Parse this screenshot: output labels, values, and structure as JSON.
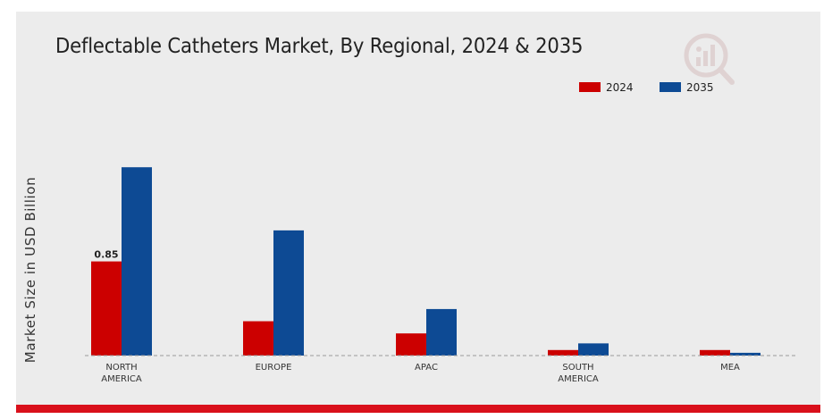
{
  "chart_data": {
    "type": "bar",
    "title": "Deflectable Catheters Market, By Regional, 2024 & 2035",
    "ylabel": "Market Size in USD Billion",
    "xlabel": "",
    "categories": [
      "NORTH AMERICA",
      "EUROPE",
      "APAC",
      "SOUTH AMERICA",
      "MEA"
    ],
    "category_lines": [
      [
        "NORTH",
        "AMERICA"
      ],
      [
        "EUROPE"
      ],
      [
        "APAC"
      ],
      [
        "SOUTH",
        "AMERICA"
      ],
      [
        "MEA"
      ]
    ],
    "series": [
      {
        "name": "2024",
        "color": "#cc0000",
        "values": [
          0.85,
          0.31,
          0.2,
          0.05,
          0.05
        ]
      },
      {
        "name": "2035",
        "color": "#0d4a94",
        "values": [
          1.7,
          1.13,
          0.42,
          0.11,
          0.025
        ]
      }
    ],
    "data_labels": [
      {
        "series": 0,
        "index": 0,
        "text": "0.85"
      }
    ],
    "ylim": [
      0,
      2.0
    ],
    "grid": false,
    "baseline": "dashed",
    "legend_position": "top-right"
  },
  "branding": {
    "logo_icon": "market-research-logo-icon",
    "accent_color": "#d9101b"
  }
}
